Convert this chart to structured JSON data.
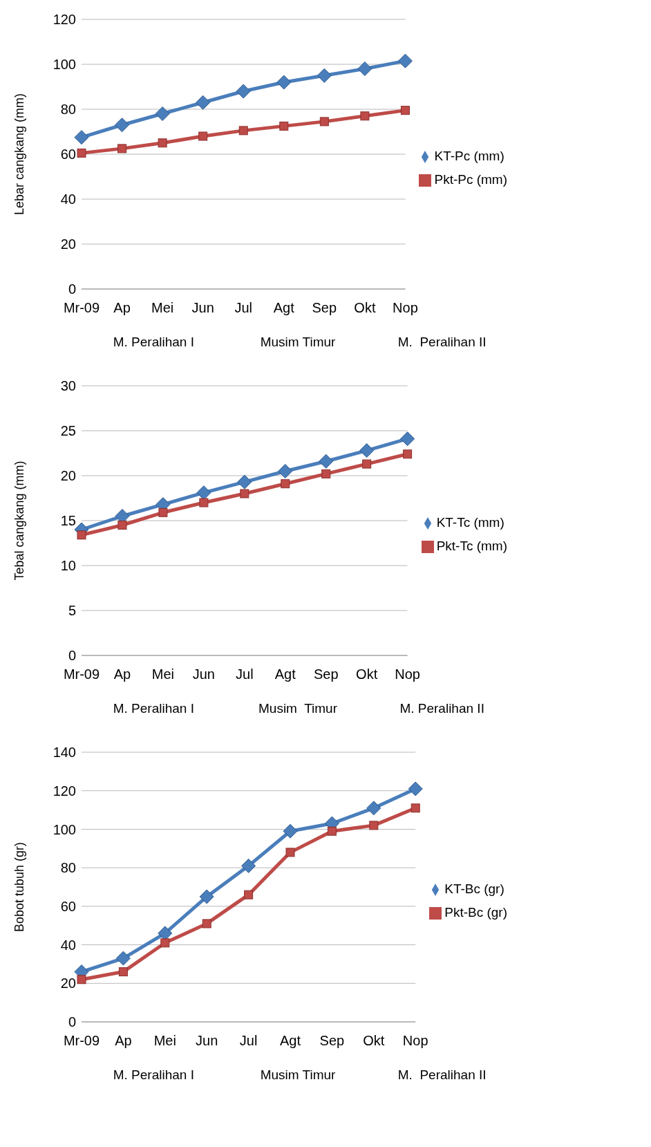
{
  "chart_data": [
    {
      "type": "line",
      "ylabel": "Lebar cangkang (mm)",
      "categories": [
        "Mr-09",
        "Ap",
        "Mei",
        "Jun",
        "Jul",
        "Agt",
        "Sep",
        "Okt",
        "Nop"
      ],
      "series": [
        {
          "name": "KT-Pc (mm)",
          "color": "#4a7ebb",
          "marker": "diamond",
          "values": [
            67.5,
            73,
            78,
            83,
            88,
            92,
            95,
            98,
            101.5
          ]
        },
        {
          "name": "Pkt-Pc (mm)",
          "color": "#be4b48",
          "marker": "square",
          "values": [
            60.5,
            62.5,
            65,
            68,
            70.5,
            72.5,
            74.5,
            77,
            79.5
          ]
        }
      ],
      "ylim": [
        0,
        120
      ],
      "yticks": [
        0,
        20,
        40,
        60,
        80,
        100,
        120
      ],
      "grid": "y",
      "legend": "right",
      "annotations": [
        "M. Peralihan I",
        "Musim Timur",
        "M.  Peralihan II"
      ]
    },
    {
      "type": "line",
      "ylabel": "Tebal cangkang (mm)",
      "categories": [
        "Mr-09",
        "Ap",
        "Mei",
        "Jun",
        "Jul",
        "Agt",
        "Sep",
        "Okt",
        "Nop"
      ],
      "series": [
        {
          "name": "KT-Tc (mm)",
          "color": "#4a7ebb",
          "marker": "diamond",
          "values": [
            14,
            15.5,
            16.8,
            18.1,
            19.3,
            20.5,
            21.6,
            22.8,
            24.1
          ]
        },
        {
          "name": "Pkt-Tc (mm)",
          "color": "#be4b48",
          "marker": "square",
          "values": [
            13.4,
            14.5,
            15.9,
            17,
            18,
            19.1,
            20.2,
            21.3,
            22.4
          ]
        }
      ],
      "ylim": [
        0,
        30
      ],
      "yticks": [
        0,
        5,
        10,
        15,
        20,
        25,
        30
      ],
      "grid": "y",
      "legend": "right",
      "annotations": [
        "M. Peralihan I",
        "Musim  Timur",
        "M. Peralihan II"
      ]
    },
    {
      "type": "line",
      "ylabel": "Bobot tubuh (gr)",
      "categories": [
        "Mr-09",
        "Ap",
        "Mei",
        "Jun",
        "Jul",
        "Agt",
        "Sep",
        "Okt",
        "Nop"
      ],
      "series": [
        {
          "name": "KT-Bc (gr)",
          "color": "#4a7ebb",
          "marker": "diamond",
          "values": [
            26,
            33,
            46,
            65,
            81,
            99,
            103,
            111,
            121
          ]
        },
        {
          "name": "Pkt-Bc (gr)",
          "color": "#be4b48",
          "marker": "square",
          "values": [
            22,
            26,
            41,
            51,
            66,
            88,
            99,
            102,
            111
          ]
        }
      ],
      "ylim": [
        0,
        140
      ],
      "yticks": [
        0,
        20,
        40,
        60,
        80,
        100,
        120,
        140
      ],
      "grid": "y",
      "legend": "right",
      "annotations": [
        "M. Peralihan I",
        "Musim Timur",
        "M.  Peralihan II"
      ]
    }
  ]
}
